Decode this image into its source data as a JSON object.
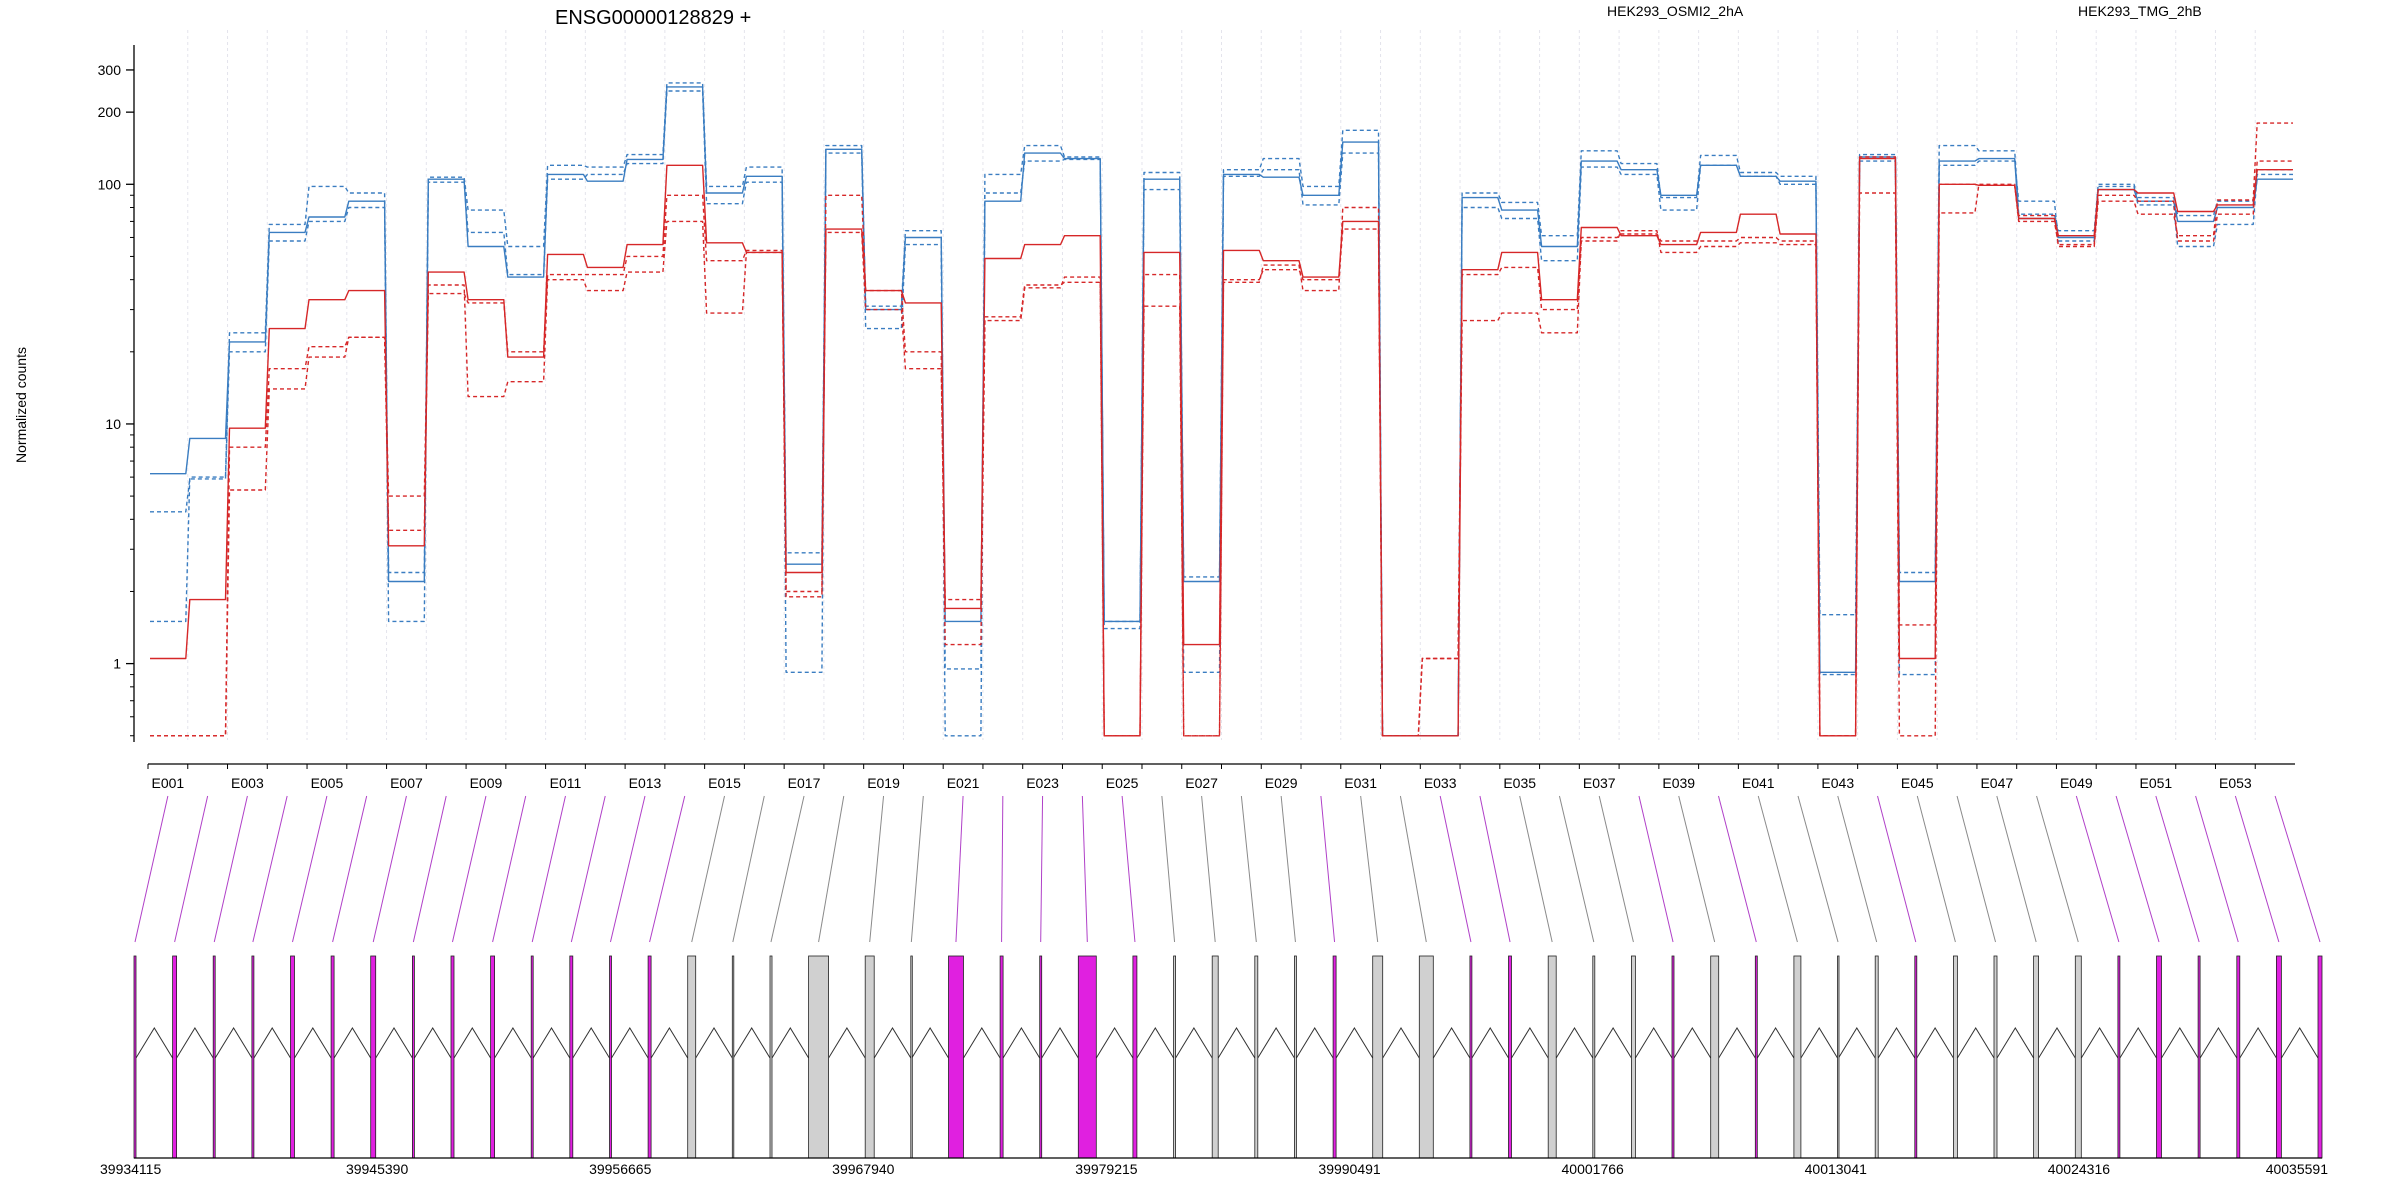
{
  "chart_data": {
    "type": "line",
    "title": "ENSG00000128829 +",
    "ylabel": "Normalized counts",
    "yscale": "log",
    "ylim": [
      0.48,
      400
    ],
    "yticks": [
      1,
      10,
      100,
      200,
      300
    ],
    "legend": [
      {
        "name": "HEK293_OSMI2_2hA",
        "color": "#d62728"
      },
      {
        "name": "HEK293_TMG_2hB",
        "color": "#3a7dc1"
      }
    ],
    "exon_labels": [
      "E001",
      "E003",
      "E005",
      "E007",
      "E009",
      "E011",
      "E013",
      "E015",
      "E017",
      "E019",
      "E021",
      "E023",
      "E025",
      "E027",
      "E029",
      "E031",
      "E033",
      "E035",
      "E037",
      "E039",
      "E041",
      "E043",
      "E045",
      "E047",
      "E049",
      "E051",
      "E053"
    ],
    "exon_count": 54,
    "series": [
      {
        "name": "HEK293_TMG_2hB",
        "color": "#3a7dc1",
        "dash": false,
        "values": [
          6.2,
          8.7,
          22,
          63,
          73,
          85,
          2.2,
          105,
          55,
          41,
          110,
          103,
          127,
          255,
          92,
          108,
          2.6,
          140,
          30,
          60,
          1.5,
          85,
          135,
          128,
          1.5,
          105,
          2.2,
          110,
          107,
          90,
          150,
          0.5,
          0.5,
          88,
          78,
          55,
          125,
          115,
          90,
          120,
          108,
          103,
          0.92,
          130,
          2.2,
          125,
          128,
          72,
          60,
          95,
          85,
          70,
          80,
          105
        ]
      },
      {
        "name": "HEK293_TMG_2hB",
        "color": "#3a7dc1",
        "dash": true,
        "values": [
          4.3,
          5.9,
          20,
          58,
          70,
          80,
          1.5,
          102,
          63,
          42,
          105,
          110,
          122,
          245,
          83,
          102,
          0.92,
          135,
          25,
          56,
          0.5,
          92,
          125,
          127,
          1.5,
          95,
          0.92,
          108,
          115,
          82,
          135,
          0.5,
          0.5,
          80,
          72,
          48,
          118,
          110,
          78,
          120,
          108,
          100,
          0.9,
          125,
          0.9,
          120,
          125,
          85,
          58,
          98,
          82,
          55,
          68,
          110
        ]
      },
      {
        "name": "HEK293_TMG_2hB",
        "color": "#3a7dc1",
        "dash": true,
        "values": [
          1.5,
          6.0,
          24,
          68,
          98,
          92,
          2.4,
          107,
          78,
          55,
          120,
          118,
          133,
          265,
          98,
          118,
          2.9,
          145,
          31,
          64,
          0.95,
          110,
          145,
          130,
          1.4,
          112,
          2.3,
          115,
          128,
          98,
          168,
          0.5,
          0.5,
          92,
          84,
          61,
          138,
          122,
          88,
          132,
          112,
          108,
          1.6,
          133,
          2.4,
          145,
          138,
          75,
          64,
          100,
          88,
          74,
          85,
          115
        ]
      },
      {
        "name": "HEK293_OSMI2_2hA",
        "color": "#d62728",
        "dash": false,
        "values": [
          1.05,
          1.85,
          9.6,
          25,
          33,
          36,
          3.1,
          43,
          33,
          19,
          51,
          45,
          56,
          120,
          57,
          52,
          2.4,
          65,
          36,
          32,
          1.7,
          49,
          56,
          61,
          0.5,
          52,
          1.2,
          53,
          48,
          41,
          70,
          0.5,
          0.5,
          44,
          52,
          33,
          66,
          61,
          56,
          63,
          75,
          62,
          0.5,
          128,
          1.05,
          100,
          99,
          72,
          61,
          95,
          92,
          77,
          82,
          115
        ]
      },
      {
        "name": "HEK293_OSMI2_2hA",
        "color": "#d62728",
        "dash": true,
        "values": [
          0.5,
          0.5,
          8.0,
          17,
          21,
          23,
          3.6,
          35,
          32,
          20,
          42,
          42,
          50,
          90,
          48,
          53,
          2.0,
          90,
          36,
          20,
          1.2,
          27,
          37,
          41,
          0.5,
          42,
          0.5,
          40,
          44,
          40,
          65,
          0.5,
          1.05,
          42,
          45,
          30,
          60,
          62,
          58,
          58,
          60,
          58,
          0.5,
          92,
          0.5,
          76,
          100,
          70,
          56,
          90,
          85,
          58,
          75,
          125
        ]
      },
      {
        "name": "HEK293_OSMI2_2hA",
        "color": "#d62728",
        "dash": true,
        "values": [
          0.5,
          0.5,
          5.3,
          14,
          19,
          23,
          5.0,
          38,
          13,
          15,
          40,
          36,
          43,
          70,
          29,
          52,
          1.9,
          63,
          30,
          17,
          1.85,
          28,
          38,
          39,
          0.5,
          31,
          0.5,
          39,
          46,
          36,
          80,
          0.5,
          1.05,
          27,
          29,
          24,
          58,
          64,
          52,
          55,
          57,
          56,
          0.5,
          130,
          1.45,
          100,
          99,
          74,
          55,
          85,
          75,
          61,
          86,
          180
        ]
      }
    ],
    "gene_coordinates": [
      "39934115",
      "39945390",
      "39956665",
      "39967940",
      "39979215",
      "39990491",
      "40001766",
      "40013041",
      "40024316",
      "40035591"
    ]
  }
}
